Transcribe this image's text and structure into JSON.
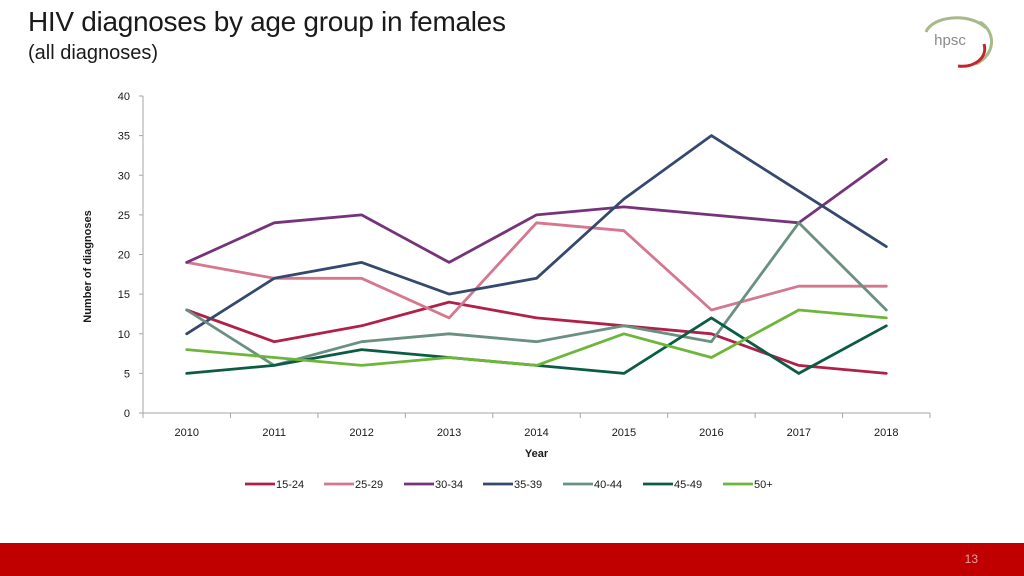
{
  "slide": {
    "title": "HIV diagnoses by age group in females",
    "subtitle": "(all diagnoses)",
    "logo_text": "hpsc",
    "page_number": "13"
  },
  "colors": {
    "footer_bar": "#c00000",
    "logo_ring_green": "#a8b98a",
    "logo_ring_red": "#c0272d"
  },
  "chart_data": {
    "type": "line",
    "title": "",
    "xlabel": "Year",
    "ylabel": "Number of diagnoses",
    "ylim": [
      0,
      40
    ],
    "yticks": [
      0,
      5,
      10,
      15,
      20,
      25,
      30,
      35,
      40
    ],
    "grid": false,
    "legend_position": "bottom",
    "categories": [
      "2010",
      "2011",
      "2012",
      "2013",
      "2014",
      "2015",
      "2016",
      "2017",
      "2018"
    ],
    "series": [
      {
        "name": "15-24",
        "color": "#b0214a",
        "values": [
          13,
          9,
          11,
          14,
          12,
          11,
          10,
          6,
          5
        ]
      },
      {
        "name": "25-29",
        "color": "#d4778f",
        "values": [
          19,
          17,
          17,
          12,
          24,
          23,
          13,
          16,
          16
        ]
      },
      {
        "name": "30-34",
        "color": "#75347a",
        "values": [
          19,
          24,
          25,
          19,
          25,
          26,
          25,
          24,
          32
        ]
      },
      {
        "name": "35-39",
        "color": "#35496e",
        "values": [
          10,
          17,
          19,
          15,
          17,
          27,
          35,
          28,
          21
        ]
      },
      {
        "name": "40-44",
        "color": "#6a9080",
        "values": [
          13,
          6,
          9,
          10,
          9,
          11,
          9,
          24,
          13
        ]
      },
      {
        "name": "45-49",
        "color": "#0a5c42",
        "values": [
          5,
          6,
          8,
          7,
          6,
          5,
          12,
          5,
          11
        ]
      },
      {
        "name": "50+",
        "color": "#6eb63a",
        "values": [
          8,
          7,
          6,
          7,
          6,
          10,
          7,
          13,
          12
        ]
      }
    ]
  }
}
